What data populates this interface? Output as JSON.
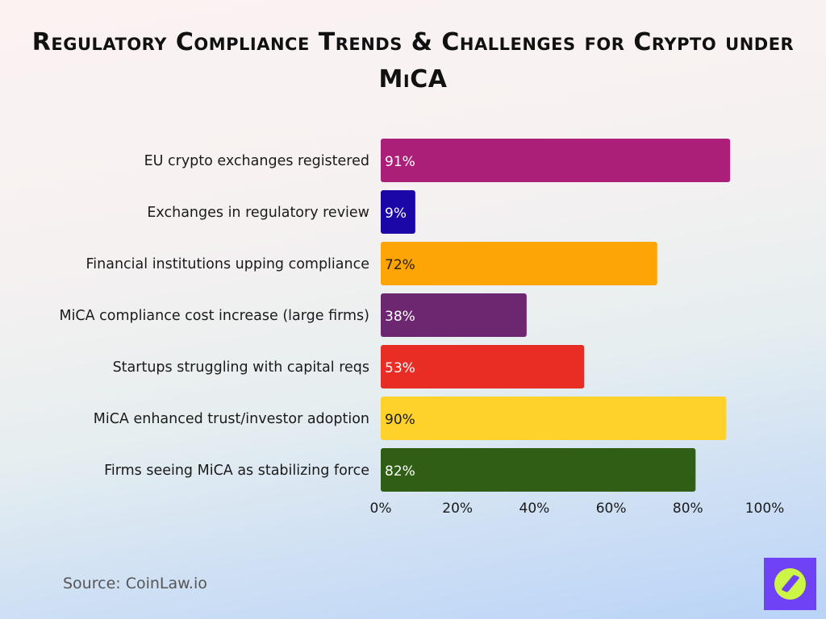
{
  "chart_data": {
    "type": "bar",
    "orientation": "horizontal",
    "title": "Regulatory Compliance Trends & Challenges for Crypto under MiCA",
    "categories": [
      "EU crypto exchanges registered",
      "Exchanges in regulatory review",
      "Financial institutions upping compliance",
      "MiCA compliance cost increase (large firms)",
      "Startups struggling with capital reqs",
      "MiCA enhanced trust/investor adoption",
      "Firms seeing MiCA as stabilizing force"
    ],
    "values": [
      91,
      9,
      72,
      38,
      53,
      90,
      82
    ],
    "data_labels": [
      "91%",
      "9%",
      "72%",
      "38%",
      "53%",
      "90%",
      "82%"
    ],
    "colors": [
      "#ab1f78",
      "#1b06a8",
      "#fca505",
      "#6c2770",
      "#e82e24",
      "#ffd22b",
      "#2f5e14"
    ],
    "label_colors": [
      "#ffffff",
      "#ffffff",
      "#2a1a00",
      "#ffffff",
      "#ffffff",
      "#1a1a1a",
      "#ffffff"
    ],
    "xlim": [
      0,
      100
    ],
    "xticks": [
      "0%",
      "20%",
      "40%",
      "60%",
      "80%",
      "100%"
    ],
    "grid": false,
    "legend": "none",
    "xlabel": "",
    "ylabel": ""
  },
  "source": "Source: CoinLaw.io",
  "logo": {
    "name": "compass-logo",
    "colors": [
      "#7042f5",
      "#cdf545"
    ]
  }
}
